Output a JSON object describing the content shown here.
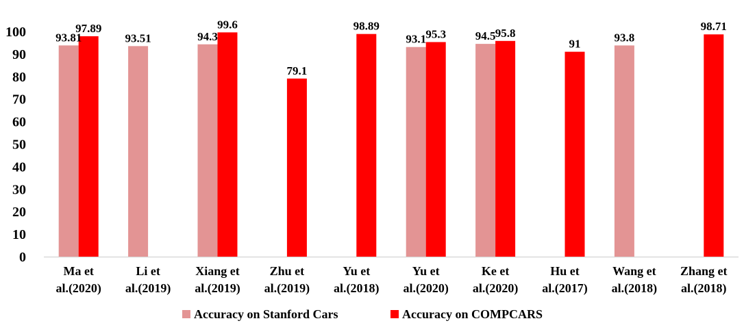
{
  "chart_data": {
    "type": "bar",
    "categories": [
      [
        "Ma et",
        "al.(2020)"
      ],
      [
        "Li et",
        "al.(2019)"
      ],
      [
        "Xiang et",
        "al.(2019)"
      ],
      [
        "Zhu et",
        "al.(2019)"
      ],
      [
        "Yu et",
        "al.(2018)"
      ],
      [
        "Yu et",
        "al.(2020)"
      ],
      [
        "Ke et",
        "al.(2020)"
      ],
      [
        "Hu et",
        "al.(2017)"
      ],
      [
        "Wang et",
        "al.(2018)"
      ],
      [
        "Zhang et",
        "al.(2018)"
      ]
    ],
    "series": [
      {
        "name": "Accuracy on Stanford Cars",
        "color": "#e39494",
        "values": [
          93.81,
          93.51,
          94.3,
          null,
          null,
          93.1,
          94.5,
          null,
          93.8,
          null
        ],
        "labels": [
          "93.81",
          "93.51",
          "94.3",
          "",
          "",
          "93.1",
          "94.5",
          "",
          "93.8",
          ""
        ]
      },
      {
        "name": "Accuracy on COMPCARS",
        "color": "#ff0000",
        "values": [
          97.89,
          null,
          99.6,
          79.1,
          98.89,
          95.3,
          95.8,
          91,
          null,
          98.71
        ],
        "labels": [
          "97.89",
          "",
          "99.6",
          "79.1",
          "98.89",
          "95.3",
          "95.8",
          "91",
          "",
          "98.71"
        ]
      }
    ],
    "yticks": [
      "0",
      "10",
      "20",
      "30",
      "40",
      "50",
      "60",
      "70",
      "80",
      "90",
      "100"
    ],
    "ylim": [
      0,
      100
    ],
    "grid": false,
    "legend_position": "bottom",
    "title": "",
    "xlabel": "",
    "ylabel": ""
  }
}
